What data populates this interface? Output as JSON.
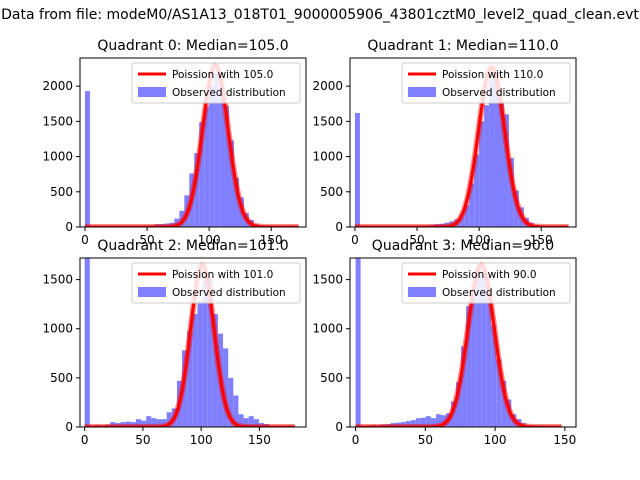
{
  "figure": {
    "suptitle": "Data from file: modeM0/AS1A13_018T01_9000005906_43801cztM0_level2_quad_clean.evt"
  },
  "colors": {
    "poisson": "#ff0000",
    "observed": "#8080ff",
    "axis": "#000000",
    "background": "#ffffff"
  },
  "chart_data": [
    {
      "type": "bar",
      "title": "Quadrant 0: Median=105.0",
      "xlim": [
        -4,
        178
      ],
      "ylim": [
        0,
        2400
      ],
      "xticks": [
        0,
        50,
        100,
        150
      ],
      "yticks": [
        0,
        500,
        1000,
        1500,
        2000
      ],
      "legend_position": "upper-right",
      "series": [
        {
          "name": "Observed distribution",
          "kind": "histogram",
          "bin_width": 4,
          "x": [
            0,
            4,
            8,
            12,
            16,
            20,
            24,
            28,
            32,
            36,
            40,
            44,
            48,
            52,
            56,
            60,
            64,
            68,
            72,
            76,
            80,
            84,
            88,
            92,
            96,
            100,
            104,
            108,
            112,
            116,
            120,
            124,
            128,
            132,
            136,
            140,
            144,
            148,
            152,
            156,
            160,
            164,
            168
          ],
          "y": [
            1930,
            0,
            0,
            0,
            0,
            0,
            0,
            0,
            0,
            5,
            10,
            10,
            15,
            20,
            40,
            40,
            50,
            60,
            120,
            230,
            450,
            760,
            1050,
            1490,
            1710,
            2010,
            2170,
            2000,
            1720,
            1230,
            700,
            420,
            200,
            100,
            40,
            20,
            10,
            5,
            0,
            0,
            0,
            0,
            0
          ]
        },
        {
          "name": "Poission with 105.0",
          "kind": "curve",
          "mean": 105.0,
          "peak": 2300
        }
      ]
    },
    {
      "type": "bar",
      "title": "Quadrant 1: Median=110.0",
      "xlim": [
        -4,
        178
      ],
      "ylim": [
        0,
        2400
      ],
      "xticks": [
        0,
        50,
        100,
        150
      ],
      "yticks": [
        0,
        500,
        1000,
        1500,
        2000
      ],
      "legend_position": "upper-right",
      "series": [
        {
          "name": "Observed distribution",
          "kind": "histogram",
          "bin_width": 4,
          "x": [
            0,
            4,
            8,
            12,
            16,
            20,
            24,
            28,
            32,
            36,
            40,
            44,
            48,
            52,
            56,
            60,
            64,
            68,
            72,
            76,
            80,
            84,
            88,
            92,
            96,
            100,
            104,
            108,
            112,
            116,
            120,
            124,
            128,
            132,
            136,
            140,
            144,
            148,
            152,
            156,
            160,
            164,
            168
          ],
          "y": [
            1620,
            0,
            0,
            0,
            0,
            0,
            0,
            0,
            0,
            0,
            5,
            10,
            10,
            15,
            20,
            30,
            40,
            45,
            60,
            80,
            110,
            170,
            310,
            620,
            1030,
            1500,
            1730,
            2080,
            2200,
            1780,
            1600,
            980,
            520,
            280,
            130,
            60,
            30,
            15,
            5,
            0,
            0,
            0,
            0
          ]
        },
        {
          "name": "Poission with 110.0",
          "kind": "curve",
          "mean": 110.0,
          "peak": 2270
        }
      ]
    },
    {
      "type": "bar",
      "title": "Quadrant 2: Median=101.0",
      "xlim": [
        -4,
        190
      ],
      "ylim": [
        0,
        1720
      ],
      "xticks": [
        0,
        50,
        100,
        150
      ],
      "yticks": [
        0,
        500,
        1000,
        1500
      ],
      "legend_position": "upper-right",
      "series": [
        {
          "name": "Observed distribution",
          "kind": "histogram",
          "bin_width": 4.4,
          "x": [
            0,
            4.4,
            8.8,
            13.2,
            17.6,
            22,
            26.4,
            30.8,
            35.2,
            39.6,
            44,
            48.4,
            52.8,
            57.2,
            61.6,
            66,
            70.4,
            74.8,
            79.2,
            83.6,
            88,
            92.4,
            96.8,
            101.2,
            105.6,
            110,
            114.4,
            118.8,
            123.2,
            127.6,
            132,
            136.4,
            140.8,
            145.2,
            149.6,
            154,
            158.4,
            162.8,
            167.2,
            171.6,
            176
          ],
          "y": [
            1720,
            0,
            20,
            15,
            25,
            50,
            40,
            50,
            55,
            50,
            80,
            65,
            110,
            90,
            80,
            80,
            150,
            190,
            470,
            780,
            980,
            1150,
            1280,
            1500,
            1510,
            1150,
            950,
            800,
            500,
            320,
            130,
            90,
            110,
            80,
            40,
            30,
            10,
            5,
            0,
            0,
            0
          ]
        },
        {
          "name": "Poission with 101.0",
          "kind": "curve",
          "mean": 101.0,
          "peak": 1650
        }
      ]
    },
    {
      "type": "bar",
      "title": "Quadrant 3: Median=90.0",
      "xlim": [
        -4,
        158
      ],
      "ylim": [
        0,
        1720
      ],
      "xticks": [
        0,
        50,
        100,
        150
      ],
      "yticks": [
        0,
        500,
        1000,
        1500
      ],
      "legend_position": "upper-right",
      "series": [
        {
          "name": "Observed distribution",
          "kind": "histogram",
          "bin_width": 3.6,
          "x": [
            0,
            3.6,
            7.2,
            10.8,
            14.4,
            18,
            21.6,
            25.2,
            28.8,
            32.4,
            36,
            39.6,
            43.2,
            46.8,
            50.4,
            54,
            57.6,
            61.2,
            64.8,
            68.4,
            72,
            75.6,
            79.2,
            82.8,
            86.4,
            90,
            93.6,
            97.2,
            100.8,
            104.4,
            108,
            111.6,
            115.2,
            118.8,
            122.4,
            126,
            129.6,
            133.2,
            136.8,
            140.4,
            144
          ],
          "y": [
            1720,
            0,
            0,
            20,
            15,
            25,
            30,
            40,
            45,
            50,
            60,
            70,
            90,
            95,
            110,
            90,
            130,
            120,
            140,
            260,
            460,
            820,
            1230,
            1400,
            1640,
            1530,
            1310,
            1030,
            690,
            470,
            280,
            130,
            80,
            40,
            20,
            10,
            5,
            0,
            0,
            0,
            0
          ]
        },
        {
          "name": "Poission with 90.0",
          "kind": "curve",
          "mean": 90.0,
          "peak": 1650
        }
      ]
    }
  ]
}
